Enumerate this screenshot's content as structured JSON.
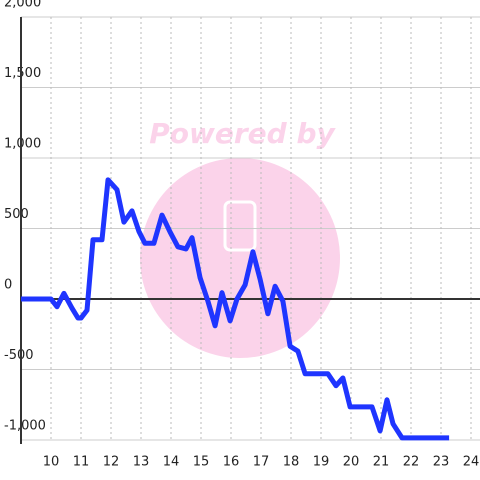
{
  "chart_data": {
    "type": "line",
    "watermark": "Powered by",
    "x": [
      9,
      10,
      10.2,
      10.43,
      10.7,
      10.9,
      11,
      11.2,
      11.4,
      11.7,
      11.9,
      12.2,
      12.43,
      12.7,
      12.93,
      13.13,
      13.43,
      13.7,
      13.97,
      14.23,
      14.5,
      14.7,
      14.97,
      15.23,
      15.47,
      15.7,
      15.97,
      16.2,
      16.47,
      16.73,
      16.97,
      17.23,
      17.47,
      17.73,
      17.97,
      18.23,
      18.47,
      18.97,
      19.23,
      19.5,
      19.73,
      19.97,
      20.7,
      20.97,
      21.2,
      21.4,
      21.7,
      23.27
    ],
    "series": [
      {
        "color": "#1f35ff",
        "values": [
          0,
          0,
          -55,
          40,
          -65,
          -135,
          -135,
          -80,
          420,
          420,
          845,
          775,
          545,
          625,
          480,
          395,
          395,
          595,
          475,
          370,
          355,
          435,
          150,
          -15,
          -190,
          45,
          -155,
          0,
          100,
          335,
          140,
          -105,
          90,
          -15,
          -335,
          -370,
          -530,
          -530,
          -530,
          -615,
          -560,
          -765,
          -765,
          -935,
          -715,
          -885,
          -985,
          -985
        ]
      }
    ],
    "xlim": [
      9,
      24.3
    ],
    "ylim": [
      -1000,
      2000
    ],
    "xticks": [
      10,
      11,
      12,
      13,
      14,
      15,
      16,
      17,
      18,
      19,
      20,
      21,
      22,
      23,
      24
    ],
    "yticks": [
      {
        "value": -1000,
        "label": "-1,000"
      },
      -500,
      0,
      500,
      {
        "value": 1000,
        "label": "1,000"
      },
      {
        "value": 1500,
        "label": "1,500"
      },
      {
        "value": 2000,
        "label": "2,000"
      }
    ],
    "grid": true
  }
}
